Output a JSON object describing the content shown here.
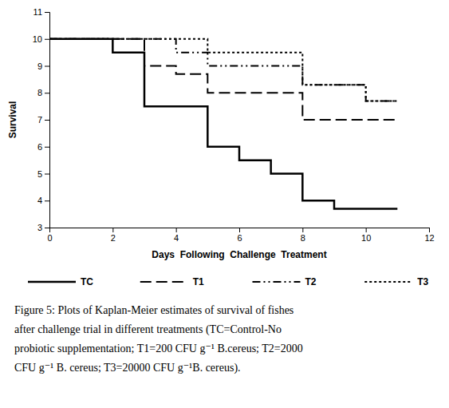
{
  "chart_data": {
    "type": "line",
    "xlabel": "Days  Following  Challenge  Treatment",
    "ylabel": "Survival",
    "xlim": [
      0,
      12
    ],
    "ylim": [
      3,
      11
    ],
    "xticks": [
      0,
      2,
      4,
      6,
      8,
      10,
      12
    ],
    "yticks": [
      3,
      4,
      5,
      6,
      7,
      8,
      9,
      10,
      11
    ],
    "legend": "bottom",
    "series": [
      {
        "name": "TC",
        "color": "#000000",
        "line_style": "solid",
        "x": [
          0,
          2,
          2,
          3,
          3,
          5,
          5,
          6,
          6,
          7,
          7,
          8,
          8,
          9,
          9,
          10,
          10,
          11
        ],
        "values": [
          10,
          10,
          9.5,
          9.5,
          7.5,
          7.5,
          6,
          6,
          5.5,
          5.5,
          5,
          5,
          4,
          4,
          3.7,
          3.7,
          3.7,
          3.7
        ]
      },
      {
        "name": "T1",
        "color": "#000000",
        "line_style": "dashed",
        "x": [
          0,
          3,
          3,
          4,
          4,
          5,
          5,
          8,
          8,
          11
        ],
        "values": [
          10,
          10,
          9,
          9,
          8.7,
          8.7,
          8,
          8,
          7,
          7
        ]
      },
      {
        "name": "T2",
        "color": "#000000",
        "line_style": "dashdotdot",
        "x": [
          0,
          4,
          4,
          5,
          5,
          8,
          8,
          10,
          10,
          11
        ],
        "values": [
          10,
          10,
          9.5,
          9.5,
          9,
          9,
          8.3,
          8.3,
          7.7,
          7.7
        ]
      },
      {
        "name": "T3",
        "color": "#000000",
        "line_style": "dotted",
        "x": [
          0,
          5,
          5,
          8,
          8,
          10,
          10,
          11
        ],
        "values": [
          10,
          10,
          9.5,
          9.5,
          8.3,
          8.3,
          7.7,
          7.7
        ]
      }
    ],
    "annotations": [
      "Figure 5: Plots of Kaplan-Meier estimates of survival of fishes",
      "after challenge trial in different treatments (TC=Control-No",
      "probiotic supplementation; T1=200 CFU g⁻¹ B.cereus; T2=2000",
      "CFU g⁻¹ B. cereus; T3=20000 CFU g⁻¹B. cereus)."
    ]
  }
}
